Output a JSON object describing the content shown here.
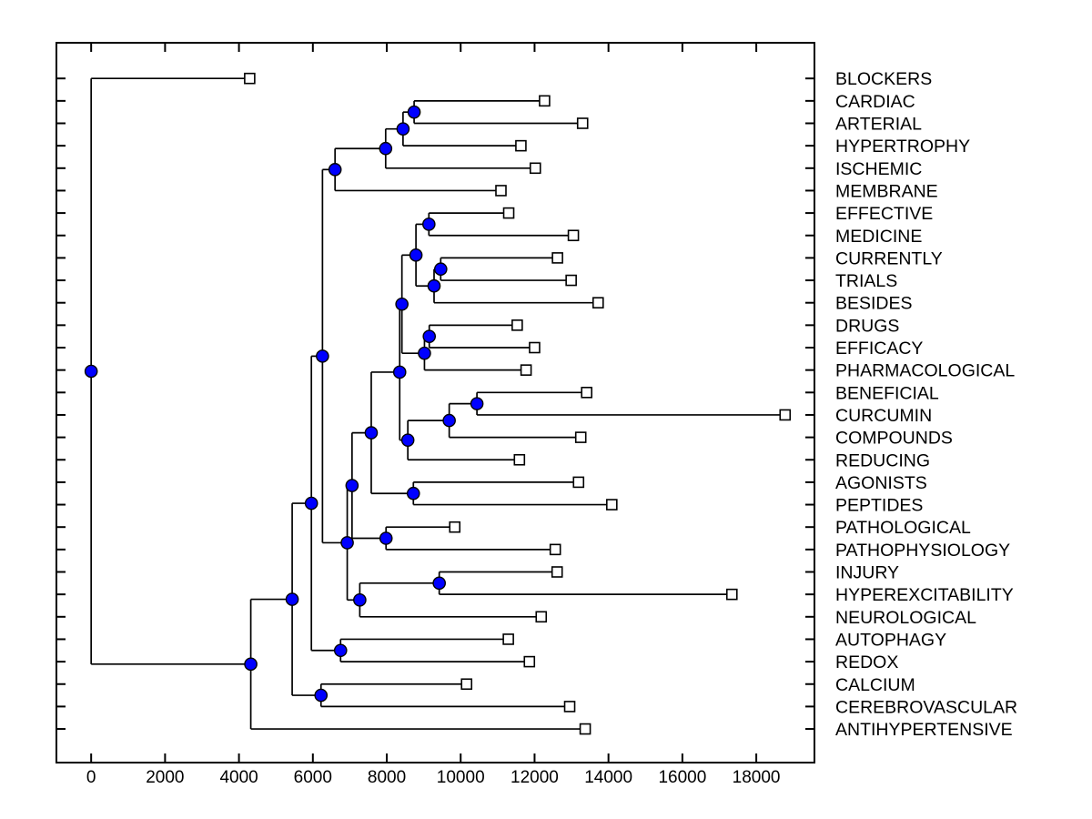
{
  "figure": {
    "background": "#ffffff",
    "axis_color": "#000000",
    "branch_color": "#000000",
    "node_marker_fill": "#0000ff",
    "node_marker_edge": "#000000",
    "leaf_marker_fill": "#ffffff",
    "leaf_marker_edge": "#000000",
    "text_color": "#000000"
  },
  "chart_data": {
    "type": "dendrogram",
    "orientation": "horizontal",
    "title": "",
    "xlabel": "",
    "ylabel": "",
    "grid": false,
    "legend": null,
    "x_ticks": [
      0,
      2000,
      4000,
      6000,
      8000,
      10000,
      12000,
      14000,
      16000,
      18000
    ],
    "x_range": [
      -940,
      19574
    ],
    "leaf_marker": "open-square",
    "node_marker": "filled-circle",
    "leaves": [
      {
        "label": "BLOCKERS",
        "value": 4290
      },
      {
        "label": "CARDIAC",
        "value": 12270
      },
      {
        "label": "ARTERIAL",
        "value": 13300
      },
      {
        "label": "HYPERTROPHY",
        "value": 11630
      },
      {
        "label": "ISCHEMIC",
        "value": 12020
      },
      {
        "label": "MEMBRANE",
        "value": 11090
      },
      {
        "label": "EFFECTIVE",
        "value": 11300
      },
      {
        "label": "MEDICINE",
        "value": 13050
      },
      {
        "label": "CURRENTLY",
        "value": 12620
      },
      {
        "label": "TRIALS",
        "value": 12990
      },
      {
        "label": "BESIDES",
        "value": 13720
      },
      {
        "label": "DRUGS",
        "value": 11530
      },
      {
        "label": "EFFICACY",
        "value": 12000
      },
      {
        "label": "PHARMACOLOGICAL",
        "value": 11770
      },
      {
        "label": "BENEFICIAL",
        "value": 13410
      },
      {
        "label": "CURCUMIN",
        "value": 18780
      },
      {
        "label": "COMPOUNDS",
        "value": 13250
      },
      {
        "label": "REDUCING",
        "value": 11590
      },
      {
        "label": "AGONISTS",
        "value": 13190
      },
      {
        "label": "PEPTIDES",
        "value": 14090
      },
      {
        "label": "PATHOLOGICAL",
        "value": 9840
      },
      {
        "label": "PATHOPHYSIOLOGY",
        "value": 12560
      },
      {
        "label": "INJURY",
        "value": 12610
      },
      {
        "label": "HYPEREXCITABILITY",
        "value": 17340
      },
      {
        "label": "NEUROLOGICAL",
        "value": 12180
      },
      {
        "label": "AUTOPHAGY",
        "value": 11290
      },
      {
        "label": "REDOX",
        "value": 11860
      },
      {
        "label": "CALCIUM",
        "value": 10160
      },
      {
        "label": "CEREBROVASCULAR",
        "value": 12950
      },
      {
        "label": "ANTIHYPERTENSIVE",
        "value": 13370
      }
    ],
    "merges": [
      {
        "a": "CARDIAC",
        "b": "ARTERIAL",
        "value": 8740
      },
      {
        "a": 0,
        "b": "HYPERTROPHY",
        "value": 8440
      },
      {
        "a": 1,
        "b": "ISCHEMIC",
        "value": 7970
      },
      {
        "a": 2,
        "b": "MEMBRANE",
        "value": 6600
      },
      {
        "a": "EFFECTIVE",
        "b": "MEDICINE",
        "value": 9140
      },
      {
        "a": "CURRENTLY",
        "b": "TRIALS",
        "value": 9460
      },
      {
        "a": 5,
        "b": "BESIDES",
        "value": 9280
      },
      {
        "a": 4,
        "b": 6,
        "value": 8790
      },
      {
        "a": "DRUGS",
        "b": "EFFICACY",
        "value": 9150
      },
      {
        "a": 8,
        "b": "PHARMACOLOGICAL",
        "value": 9020
      },
      {
        "a": 7,
        "b": 9,
        "value": 8410
      },
      {
        "a": "BENEFICIAL",
        "b": "CURCUMIN",
        "value": 10440
      },
      {
        "a": 11,
        "b": "COMPOUNDS",
        "value": 9690
      },
      {
        "a": 12,
        "b": "REDUCING",
        "value": 8570
      },
      {
        "a": 10,
        "b": 13,
        "value": 8350
      },
      {
        "a": "AGONISTS",
        "b": "PEPTIDES",
        "value": 8720
      },
      {
        "a": 14,
        "b": 15,
        "value": 7580
      },
      {
        "a": "PATHOLOGICAL",
        "b": "PATHOPHYSIOLOGY",
        "value": 7980
      },
      {
        "a": 16,
        "b": 17,
        "value": 7060
      },
      {
        "a": "INJURY",
        "b": "HYPEREXCITABILITY",
        "value": 9420
      },
      {
        "a": 19,
        "b": "NEUROLOGICAL",
        "value": 7270
      },
      {
        "a": 18,
        "b": 20,
        "value": 6930
      },
      {
        "a": 3,
        "b": 21,
        "value": 6260
      },
      {
        "a": "AUTOPHAGY",
        "b": "REDOX",
        "value": 6750
      },
      {
        "a": 22,
        "b": 23,
        "value": 5960
      },
      {
        "a": "CALCIUM",
        "b": "CEREBROVASCULAR",
        "value": 6220
      },
      {
        "a": 24,
        "b": 25,
        "value": 5440
      },
      {
        "a": 26,
        "b": "ANTIHYPERTENSIVE",
        "value": 4320
      },
      {
        "a": "BLOCKERS",
        "b": 27,
        "value": 0
      }
    ]
  }
}
